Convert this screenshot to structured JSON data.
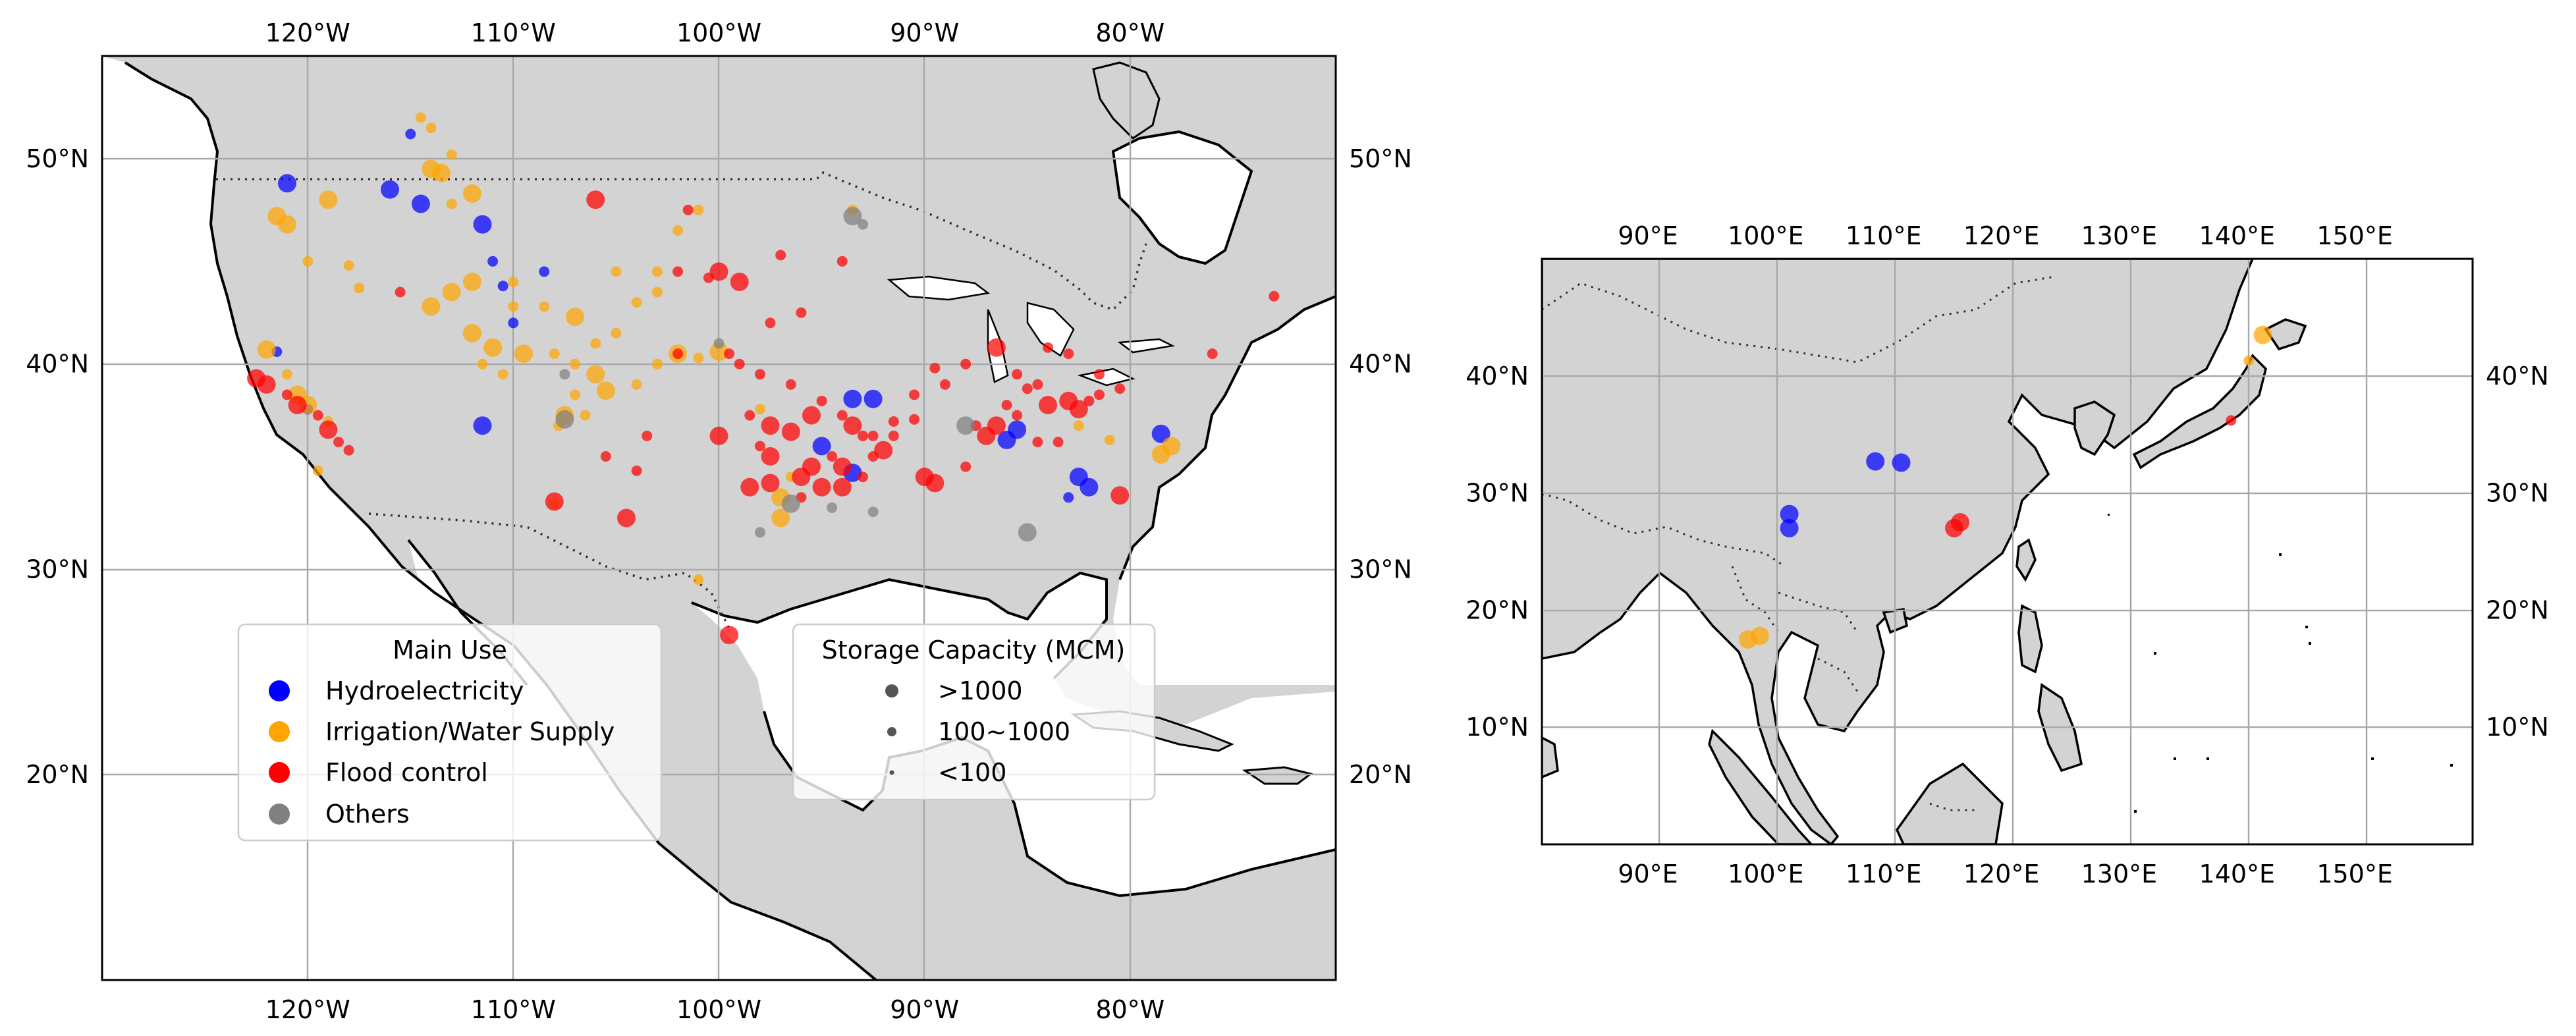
{
  "chart_data": [
    {
      "type": "scatter",
      "title": "",
      "xlim": [
        -130,
        -70
      ],
      "ylim": [
        10,
        55
      ],
      "grid": true,
      "x_ticks": [
        "120°W",
        "110°W",
        "100°W",
        "90°W",
        "80°W"
      ],
      "y_ticks": [
        "20°N",
        "30°N",
        "40°N",
        "50°N"
      ],
      "legend_main_use": {
        "title": "Main Use",
        "placement": "lower-left",
        "entries": [
          {
            "label": "Hydroelectricity",
            "color": "#0000ff"
          },
          {
            "label": "Irrigation/Water Supply",
            "color": "#ffa500"
          },
          {
            "label": "Flood control",
            "color": "#ff0000"
          },
          {
            "label": "Others",
            "color": "#808080"
          }
        ]
      },
      "legend_capacity": {
        "title": "Storage Capacity (MCM)",
        "placement": "lower-center",
        "entries": [
          {
            "label": ">1000",
            "size": "large"
          },
          {
            "label": "100~1000",
            "size": "medium"
          },
          {
            "label": "<100",
            "size": "small"
          }
        ]
      },
      "series": [
        {
          "name": "Hydroelectricity",
          "color": "#0000ff",
          "points": [
            [
              -121,
              48.8,
              2
            ],
            [
              -115,
              51.2,
              1
            ],
            [
              -116,
              48.5,
              2
            ],
            [
              -114.5,
              47.8,
              2
            ],
            [
              -111.5,
              46.8,
              2
            ],
            [
              -111,
              45,
              1
            ],
            [
              -110.5,
              43.8,
              1
            ],
            [
              -108.5,
              44.5,
              1
            ],
            [
              -110,
              42,
              1
            ],
            [
              -111.5,
              37,
              2
            ],
            [
              -121.5,
              40.6,
              1
            ],
            [
              -120,
              37.8,
              1
            ],
            [
              -93.5,
              38.3,
              2
            ],
            [
              -92.5,
              38.3,
              2
            ],
            [
              -95,
              36,
              2
            ],
            [
              -93.5,
              34.7,
              2
            ],
            [
              -85.5,
              36.8,
              2
            ],
            [
              -86,
              36.3,
              2
            ],
            [
              -82.5,
              34.5,
              2
            ],
            [
              -82,
              34,
              2
            ],
            [
              -83,
              33.5,
              1
            ],
            [
              -78.5,
              36.6,
              2
            ]
          ]
        },
        {
          "name": "Irrigation/Water Supply",
          "color": "#ffa500",
          "points": [
            [
              -114.5,
              52,
              1
            ],
            [
              -114,
              51.5,
              1
            ],
            [
              -113,
              50.2,
              1
            ],
            [
              -114,
              49.5,
              2
            ],
            [
              -113.5,
              49.3,
              2
            ],
            [
              -112,
              48.3,
              2
            ],
            [
              -113,
              47.8,
              1
            ],
            [
              -119,
              48,
              2
            ],
            [
              -121.5,
              47.2,
              2
            ],
            [
              -121,
              46.8,
              2
            ],
            [
              -120,
              45,
              1
            ],
            [
              -118,
              44.8,
              1
            ],
            [
              -117.5,
              43.7,
              1
            ],
            [
              -114,
              42.8,
              2
            ],
            [
              -113,
              43.5,
              2
            ],
            [
              -112,
              44,
              2
            ],
            [
              -110,
              44,
              1
            ],
            [
              -110,
              42.8,
              1
            ],
            [
              -108.5,
              42.8,
              1
            ],
            [
              -107,
              42.3,
              2
            ],
            [
              -105,
              44.5,
              1
            ],
            [
              -104,
              43,
              1
            ],
            [
              -103,
              43.5,
              1
            ],
            [
              -103,
              44.5,
              1
            ],
            [
              -102,
              46.5,
              1
            ],
            [
              -101,
              47.5,
              1
            ],
            [
              -105,
              41.5,
              1
            ],
            [
              -106,
              41,
              1
            ],
            [
              -108,
              40.5,
              1
            ],
            [
              -109.5,
              40.5,
              2
            ],
            [
              -111,
              40.8,
              2
            ],
            [
              -112,
              41.5,
              2
            ],
            [
              -111.5,
              40,
              1
            ],
            [
              -110.5,
              39.5,
              1
            ],
            [
              -107,
              40,
              1
            ],
            [
              -106,
              39.5,
              2
            ],
            [
              -105.5,
              38.7,
              2
            ],
            [
              -107,
              38.5,
              1
            ],
            [
              -106.5,
              37.5,
              1
            ],
            [
              -104,
              39,
              1
            ],
            [
              -102,
              40.5,
              2
            ],
            [
              -101,
              40.3,
              1
            ],
            [
              -100,
              40.6,
              2
            ],
            [
              -103,
              40,
              1
            ],
            [
              -122,
              40.7,
              2
            ],
            [
              -121,
              39.5,
              1
            ],
            [
              -120.5,
              38.5,
              2
            ],
            [
              -120,
              38,
              2
            ],
            [
              -119,
              37.2,
              1
            ],
            [
              -119.5,
              34.8,
              1
            ],
            [
              -107.5,
              37.5,
              2
            ],
            [
              -107.8,
              37,
              1
            ],
            [
              -97,
              33.5,
              2
            ],
            [
              -97,
              32.5,
              2
            ],
            [
              -96.5,
              34.5,
              1
            ],
            [
              -101,
              29.5,
              1
            ],
            [
              -78,
              36,
              2
            ],
            [
              -78.5,
              35.6,
              2
            ],
            [
              -82.5,
              37,
              1
            ],
            [
              -81,
              36.3,
              1
            ],
            [
              -93.5,
              47.5,
              1
            ],
            [
              -98,
              37.8,
              1
            ],
            [
              -108,
              33.2,
              1
            ]
          ]
        },
        {
          "name": "Flood control",
          "color": "#ff0000",
          "points": [
            [
              -106,
              48,
              2
            ],
            [
              -101.5,
              47.5,
              1
            ],
            [
              -100,
              44.5,
              2
            ],
            [
              -99,
              44,
              2
            ],
            [
              -97,
              45.3,
              1
            ],
            [
              -97.5,
              42,
              1
            ],
            [
              -96,
              42.5,
              1
            ],
            [
              -99.5,
              40.5,
              1
            ],
            [
              -99,
              40,
              1
            ],
            [
              -98,
              39.5,
              1
            ],
            [
              -96.5,
              39,
              1
            ],
            [
              -98.5,
              37.5,
              1
            ],
            [
              -100,
              36.5,
              2
            ],
            [
              -97.5,
              37,
              2
            ],
            [
              -96.5,
              36.7,
              2
            ],
            [
              -95.5,
              37.5,
              2
            ],
            [
              -95,
              38.2,
              1
            ],
            [
              -94,
              37.5,
              1
            ],
            [
              -93.5,
              37,
              2
            ],
            [
              -92.5,
              36.5,
              1
            ],
            [
              -92,
              35.8,
              2
            ],
            [
              -91.5,
              36.5,
              1
            ],
            [
              -93,
              36.5,
              1
            ],
            [
              -94.5,
              35.5,
              1
            ],
            [
              -95.5,
              35,
              2
            ],
            [
              -96,
              34.5,
              2
            ],
            [
              -97.5,
              34.2,
              2
            ],
            [
              -98.5,
              34,
              2
            ],
            [
              -97.5,
              35.5,
              2
            ],
            [
              -98,
              36,
              1
            ],
            [
              -96,
              33.5,
              1
            ],
            [
              -95,
              34,
              2
            ],
            [
              -94,
              34,
              2
            ],
            [
              -93,
              34.5,
              1
            ],
            [
              -94,
              35,
              2
            ],
            [
              -92.5,
              35.5,
              1
            ],
            [
              -90,
              34.5,
              2
            ],
            [
              -89.5,
              34.2,
              2
            ],
            [
              -88,
              35,
              1
            ],
            [
              -87,
              36.5,
              2
            ],
            [
              -86.5,
              37,
              2
            ],
            [
              -87.5,
              37,
              1
            ],
            [
              -86,
              38,
              1
            ],
            [
              -85,
              38.8,
              1
            ],
            [
              -84,
              38,
              2
            ],
            [
              -83,
              38.2,
              2
            ],
            [
              -82.5,
              37.8,
              2
            ],
            [
              -82,
              38.2,
              1
            ],
            [
              -81.5,
              38.5,
              1
            ],
            [
              -80.5,
              38.8,
              1
            ],
            [
              -81.5,
              39.5,
              1
            ],
            [
              -83,
              40.5,
              1
            ],
            [
              -84,
              40.8,
              1
            ],
            [
              -86.5,
              40.8,
              2
            ],
            [
              -88,
              40,
              1
            ],
            [
              -89.5,
              39.8,
              1
            ],
            [
              -90.5,
              38.5,
              1
            ],
            [
              -89,
              39,
              1
            ],
            [
              -85.5,
              39.5,
              1
            ],
            [
              -84.5,
              39,
              1
            ],
            [
              -84.5,
              36.2,
              1
            ],
            [
              -83.5,
              36.2,
              1
            ],
            [
              -85.5,
              37.5,
              1
            ],
            [
              -91.5,
              37.2,
              1
            ],
            [
              -90.5,
              37.3,
              1
            ],
            [
              -115.5,
              43.5,
              1
            ],
            [
              -103.5,
              36.5,
              1
            ],
            [
              -104,
              34.8,
              1
            ],
            [
              -105.5,
              35.5,
              1
            ],
            [
              -104.5,
              32.5,
              2
            ],
            [
              -108,
              33.3,
              2
            ],
            [
              -122.5,
              39.3,
              2
            ],
            [
              -122,
              39,
              2
            ],
            [
              -121,
              38.5,
              1
            ],
            [
              -120.5,
              38,
              2
            ],
            [
              -119.5,
              37.5,
              1
            ],
            [
              -119,
              36.8,
              2
            ],
            [
              -118.5,
              36.2,
              1
            ],
            [
              -118,
              35.8,
              1
            ],
            [
              -102,
              44.5,
              1
            ],
            [
              -100.5,
              44.2,
              1
            ],
            [
              -94,
              45,
              1
            ],
            [
              -76,
              40.5,
              1
            ],
            [
              -73,
              43.3,
              1
            ],
            [
              -80.5,
              33.6,
              2
            ],
            [
              -99.5,
              26.8,
              2
            ],
            [
              -102,
              40.5,
              1
            ]
          ]
        },
        {
          "name": "Others",
          "color": "#808080",
          "points": [
            [
              -93.5,
              47.2,
              2
            ],
            [
              -93,
              46.8,
              1
            ],
            [
              -88,
              37,
              2
            ],
            [
              -85,
              31.8,
              2
            ],
            [
              -96.5,
              33.2,
              2
            ],
            [
              -94.5,
              33,
              1
            ],
            [
              -92.5,
              32.8,
              1
            ],
            [
              -98,
              31.8,
              1
            ],
            [
              -107.5,
              39.5,
              1
            ],
            [
              -107.5,
              37.3,
              2
            ],
            [
              -100,
              41,
              1
            ]
          ]
        }
      ]
    },
    {
      "type": "scatter",
      "title": "",
      "xlim": [
        81,
        160
      ],
      "ylim": [
        0,
        50
      ],
      "grid": true,
      "x_ticks": [
        "90°E",
        "100°E",
        "110°E",
        "120°E",
        "130°E",
        "140°E",
        "150°E"
      ],
      "y_ticks": [
        "10°N",
        "20°N",
        "30°N",
        "40°N"
      ],
      "series": [
        {
          "name": "Hydroelectricity",
          "color": "#0000ff",
          "points": [
            [
              109.3,
              32.7,
              2
            ],
            [
              111.5,
              32.6,
              2
            ],
            [
              102,
              28.2,
              2
            ],
            [
              102,
              27,
              2
            ]
          ]
        },
        {
          "name": "Irrigation/Water Supply",
          "color": "#ffa500",
          "points": [
            [
              98.5,
              17.5,
              2
            ],
            [
              99.5,
              17.8,
              2
            ],
            [
              142.2,
              43.5,
              2
            ],
            [
              141,
              41.3,
              1
            ]
          ]
        },
        {
          "name": "Flood control",
          "color": "#ff0000",
          "points": [
            [
              116,
              27,
              2
            ],
            [
              116.5,
              27.5,
              2
            ],
            [
              139.5,
              36.2,
              1
            ]
          ]
        },
        {
          "name": "Others",
          "color": "#808080",
          "points": []
        }
      ]
    }
  ]
}
